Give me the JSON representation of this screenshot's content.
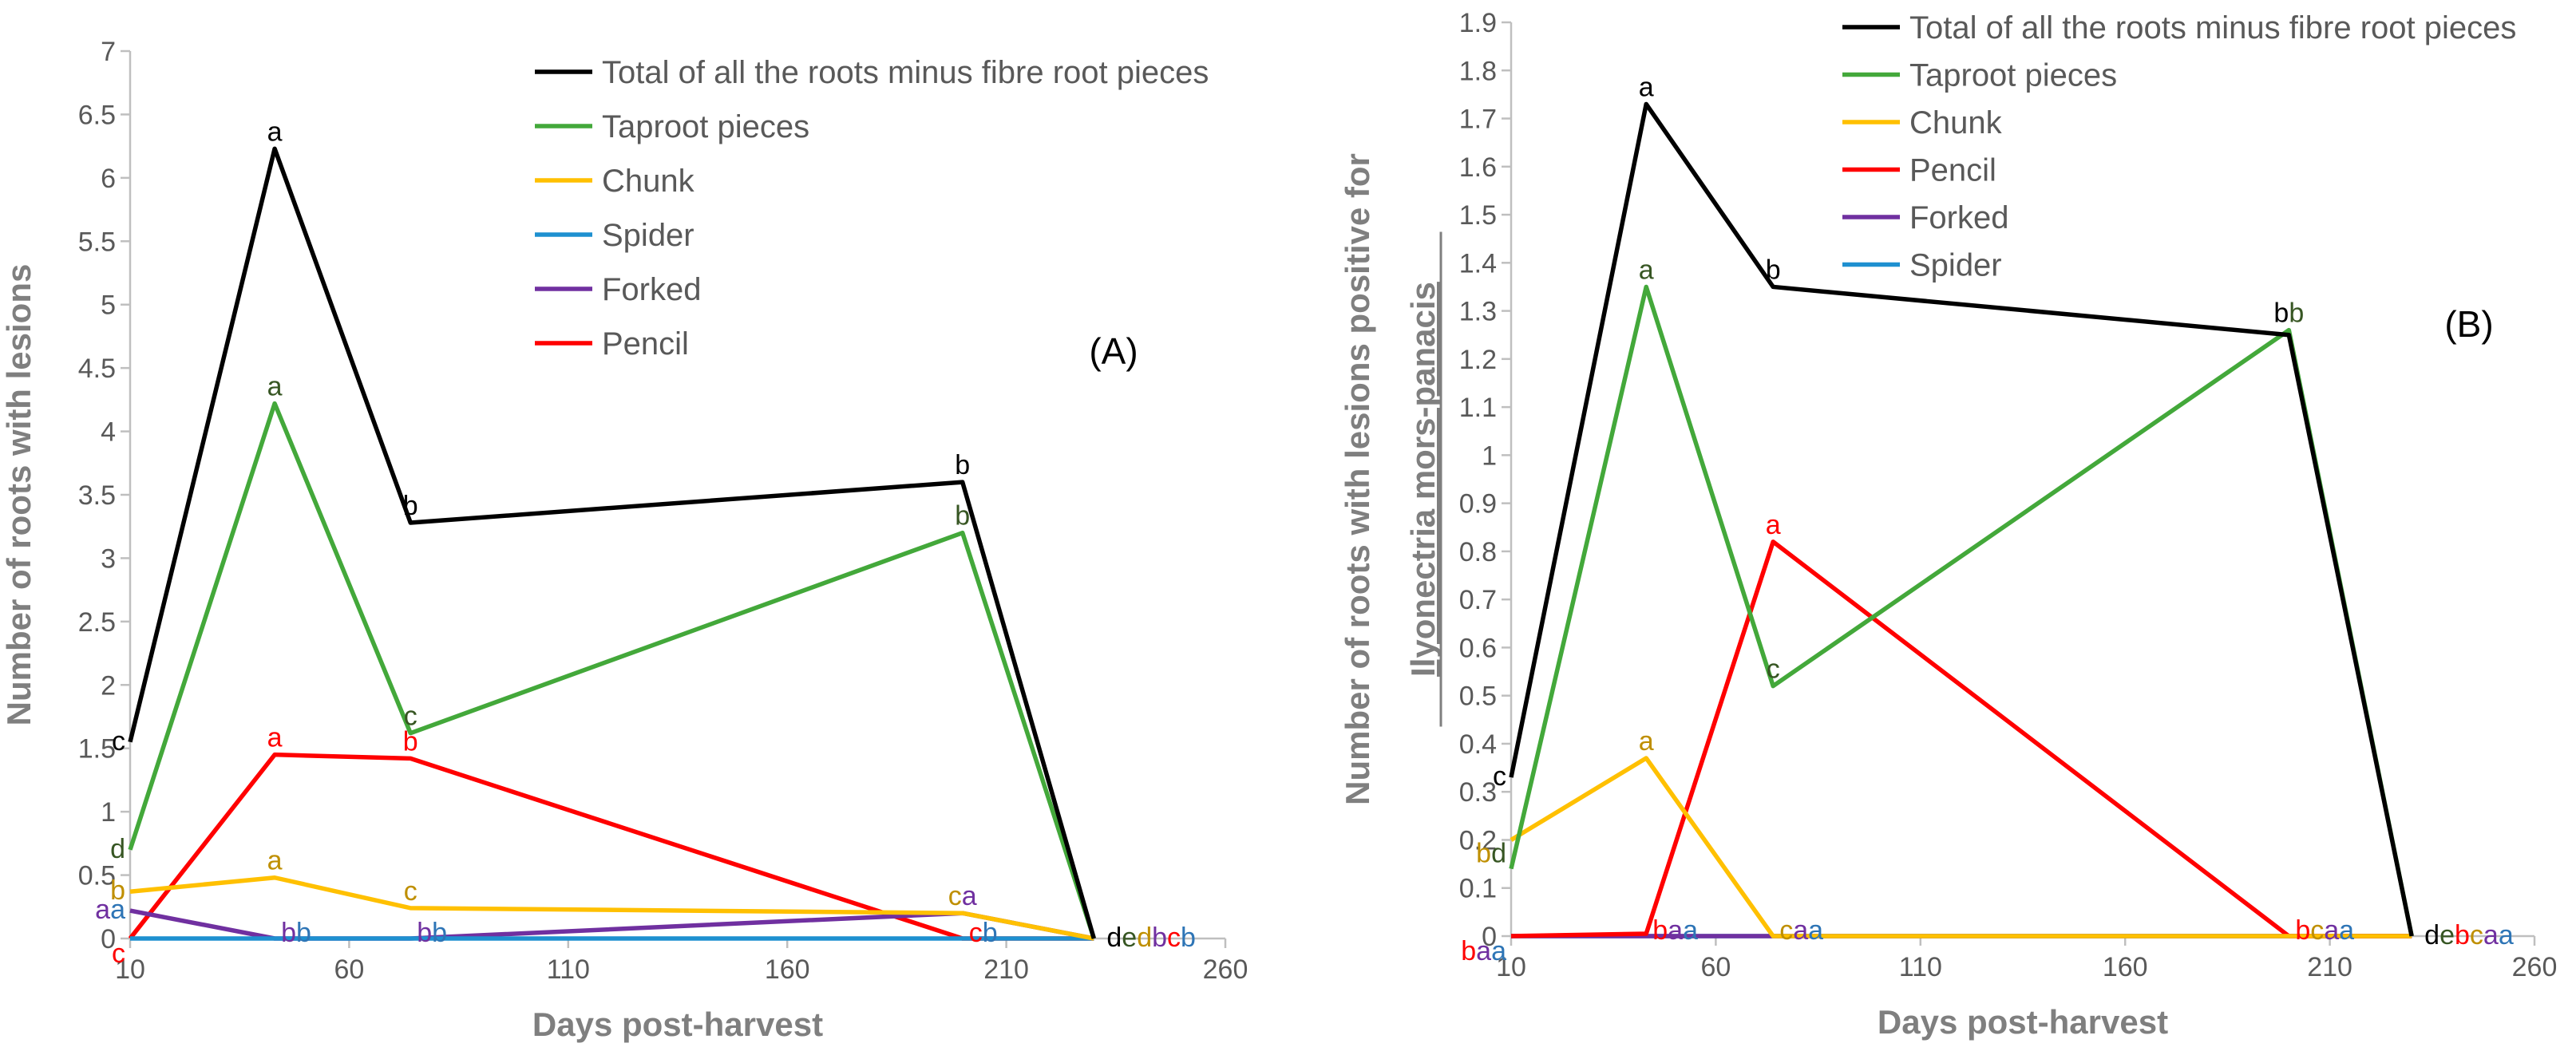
{
  "chart_data": [
    {
      "panel": "A",
      "type": "line",
      "panel_label": "(A)",
      "xlabel": "Days post-harvest",
      "ylabel": "Number of roots with lesions",
      "xlim": [
        10,
        260
      ],
      "xticks": [
        10,
        60,
        110,
        160,
        210,
        260
      ],
      "ylim": [
        0,
        7
      ],
      "yticks": [
        "0",
        "0.5",
        "1",
        "1.5",
        "2",
        "2.5",
        "3",
        "3.5",
        "4",
        "4.5",
        "5",
        "5.5",
        "6",
        "6.5",
        "7"
      ],
      "x": [
        10,
        43,
        74,
        200,
        230
      ],
      "series": [
        {
          "name": "Total of all the roots minus fibre root pieces",
          "color": "#000000",
          "values": [
            1.55,
            6.23,
            3.28,
            3.6,
            0
          ]
        },
        {
          "name": "Taproot pieces",
          "color": "#43a83a",
          "values": [
            0.7,
            4.22,
            1.62,
            3.2,
            0
          ]
        },
        {
          "name": "Chunk",
          "color": "#ffc000",
          "values": [
            0.37,
            0.48,
            0.24,
            0.2,
            0
          ]
        },
        {
          "name": "Spider",
          "color": "#1e90d0",
          "values": [
            0,
            0,
            0,
            0,
            0
          ]
        },
        {
          "name": "Forked",
          "color": "#7030a0",
          "values": [
            0.22,
            0,
            0,
            0.2,
            0
          ]
        },
        {
          "name": "Pencil",
          "color": "#ff0000",
          "values": [
            0,
            1.45,
            1.42,
            0,
            0
          ]
        }
      ],
      "annotations": [
        {
          "x": 10,
          "y": 1.55,
          "parts": [
            {
              "text": "c",
              "color": "#000000"
            }
          ]
        },
        {
          "x": 10,
          "y": 0.7,
          "parts": [
            {
              "text": "d",
              "color": "#375623"
            }
          ]
        },
        {
          "x": 10,
          "y": 0.37,
          "parts": [
            {
              "text": "b",
              "color": "#bf8f00"
            }
          ]
        },
        {
          "x": 10,
          "y": 0.22,
          "parts": [
            {
              "text": "a",
              "color": "#7030a0"
            },
            {
              "text": "a",
              "color": "#2e75b6"
            }
          ]
        },
        {
          "x": 10,
          "y": 0,
          "parts": [
            {
              "text": "c",
              "color": "#ff0000"
            }
          ]
        },
        {
          "x": 43,
          "y": 6.23,
          "parts": [
            {
              "text": "a",
              "color": "#000000"
            }
          ]
        },
        {
          "x": 43,
          "y": 4.22,
          "parts": [
            {
              "text": "a",
              "color": "#375623"
            }
          ]
        },
        {
          "x": 43,
          "y": 1.45,
          "parts": [
            {
              "text": "a",
              "color": "#ff0000"
            }
          ]
        },
        {
          "x": 43,
          "y": 0.48,
          "parts": [
            {
              "text": "a",
              "color": "#bf8f00"
            }
          ]
        },
        {
          "x": 43,
          "y": 0,
          "parts": [
            {
              "text": "b",
              "color": "#7030a0"
            },
            {
              "text": "b",
              "color": "#2e75b6"
            }
          ]
        },
        {
          "x": 74,
          "y": 3.28,
          "parts": [
            {
              "text": "b",
              "color": "#000000"
            }
          ]
        },
        {
          "x": 74,
          "y": 1.62,
          "parts": [
            {
              "text": "c",
              "color": "#375623"
            }
          ]
        },
        {
          "x": 74,
          "y": 1.42,
          "parts": [
            {
              "text": "b",
              "color": "#ff0000"
            }
          ]
        },
        {
          "x": 74,
          "y": 0.24,
          "parts": [
            {
              "text": "c",
              "color": "#bf8f00"
            }
          ]
        },
        {
          "x": 74,
          "y": 0,
          "parts": [
            {
              "text": "b",
              "color": "#7030a0"
            },
            {
              "text": "b",
              "color": "#2e75b6"
            }
          ]
        },
        {
          "x": 200,
          "y": 3.6,
          "parts": [
            {
              "text": "b",
              "color": "#000000"
            }
          ]
        },
        {
          "x": 200,
          "y": 3.2,
          "parts": [
            {
              "text": "b",
              "color": "#375623"
            }
          ]
        },
        {
          "x": 200,
          "y": 0.2,
          "parts": [
            {
              "text": "c",
              "color": "#bf8f00"
            },
            {
              "text": "a",
              "color": "#7030a0"
            }
          ]
        },
        {
          "x": 200,
          "y": 0,
          "parts": [
            {
              "text": "c",
              "color": "#ff0000"
            },
            {
              "text": "b",
              "color": "#2e75b6"
            }
          ]
        },
        {
          "x": 230,
          "y": 0,
          "parts": [
            {
              "text": "d",
              "color": "#000000"
            },
            {
              "text": "e",
              "color": "#375623"
            },
            {
              "text": "d",
              "color": "#bf8f00"
            },
            {
              "text": "b",
              "color": "#7030a0"
            },
            {
              "text": "c",
              "color": "#ff0000"
            },
            {
              "text": "b",
              "color": "#2e75b6"
            }
          ]
        }
      ]
    },
    {
      "panel": "B",
      "type": "line",
      "panel_label": "(B)",
      "xlabel": "Days post-harvest",
      "ylabel_line1": "Number of roots with lesions positive for",
      "ylabel_line2": "Ilyonectria mors-panacis",
      "xlim": [
        10,
        260
      ],
      "xticks": [
        10,
        60,
        110,
        160,
        210,
        260
      ],
      "ylim": [
        0,
        1.9
      ],
      "yticks": [
        "0",
        "0.1",
        "0.2",
        "0.3",
        "0.4",
        "0.5",
        "0.6",
        "0.7",
        "0.8",
        "0.9",
        "1",
        "1.1",
        "1.2",
        "1.3",
        "1.4",
        "1.5",
        "1.6",
        "1.7",
        "1.8",
        "1.9"
      ],
      "x": [
        10,
        43,
        74,
        200,
        230
      ],
      "series": [
        {
          "name": "Total of all the roots minus fibre root pieces",
          "color": "#000000",
          "values": [
            0.33,
            1.73,
            1.35,
            1.25,
            0
          ]
        },
        {
          "name": "Taproot pieces",
          "color": "#43a83a",
          "values": [
            0.14,
            1.35,
            0.52,
            1.26,
            0
          ]
        },
        {
          "name": "Chunk",
          "color": "#ffc000",
          "values": [
            0.2,
            0.37,
            0,
            0,
            0
          ]
        },
        {
          "name": "Pencil",
          "color": "#ff0000",
          "values": [
            0,
            0.005,
            0.82,
            0,
            0
          ]
        },
        {
          "name": "Forked",
          "color": "#7030a0",
          "values": [
            0,
            0,
            0,
            0,
            0
          ]
        },
        {
          "name": "Spider",
          "color": "#1e90d0",
          "values": [
            0,
            0,
            0,
            0,
            0
          ]
        }
      ],
      "annotations": [
        {
          "x": 10,
          "y": 0.33,
          "parts": [
            {
              "text": "c",
              "color": "#000000"
            }
          ]
        },
        {
          "x": 10,
          "y": 0.17,
          "parts": [
            {
              "text": "b",
              "color": "#bf8f00"
            },
            {
              "text": "d",
              "color": "#375623"
            }
          ]
        },
        {
          "x": 10,
          "y": 0,
          "parts": [
            {
              "text": "b",
              "color": "#ff0000"
            },
            {
              "text": "a",
              "color": "#7030a0"
            },
            {
              "text": "a",
              "color": "#2e75b6"
            }
          ]
        },
        {
          "x": 43,
          "y": 1.73,
          "parts": [
            {
              "text": "a",
              "color": "#000000"
            }
          ]
        },
        {
          "x": 43,
          "y": 1.35,
          "parts": [
            {
              "text": "a",
              "color": "#375623"
            }
          ]
        },
        {
          "x": 43,
          "y": 0.37,
          "parts": [
            {
              "text": "a",
              "color": "#bf8f00"
            }
          ]
        },
        {
          "x": 43,
          "y": 0,
          "parts": [
            {
              "text": "b",
              "color": "#ff0000"
            },
            {
              "text": "a",
              "color": "#7030a0"
            },
            {
              "text": "a",
              "color": "#2e75b6"
            }
          ]
        },
        {
          "x": 74,
          "y": 1.35,
          "parts": [
            {
              "text": "b",
              "color": "#000000"
            }
          ]
        },
        {
          "x": 74,
          "y": 0.82,
          "parts": [
            {
              "text": "a",
              "color": "#ff0000"
            }
          ]
        },
        {
          "x": 74,
          "y": 0.52,
          "parts": [
            {
              "text": "c",
              "color": "#375623"
            }
          ]
        },
        {
          "x": 74,
          "y": 0,
          "parts": [
            {
              "text": "c",
              "color": "#bf8f00"
            },
            {
              "text": "a",
              "color": "#7030a0"
            },
            {
              "text": "a",
              "color": "#2e75b6"
            }
          ]
        },
        {
          "x": 200,
          "y": 1.26,
          "parts": [
            {
              "text": "b",
              "color": "#000000"
            },
            {
              "text": "b",
              "color": "#375623"
            }
          ]
        },
        {
          "x": 200,
          "y": 0,
          "parts": [
            {
              "text": "b",
              "color": "#ff0000"
            },
            {
              "text": "c",
              "color": "#bf8f00"
            },
            {
              "text": "a",
              "color": "#7030a0"
            },
            {
              "text": "a",
              "color": "#2e75b6"
            }
          ]
        },
        {
          "x": 230,
          "y": 0,
          "parts": [
            {
              "text": "d",
              "color": "#000000"
            },
            {
              "text": "e",
              "color": "#375623"
            },
            {
              "text": "b",
              "color": "#ff0000"
            },
            {
              "text": "c",
              "color": "#bf8f00"
            },
            {
              "text": "a",
              "color": "#7030a0"
            },
            {
              "text": "a",
              "color": "#2e75b6"
            }
          ]
        }
      ]
    }
  ]
}
